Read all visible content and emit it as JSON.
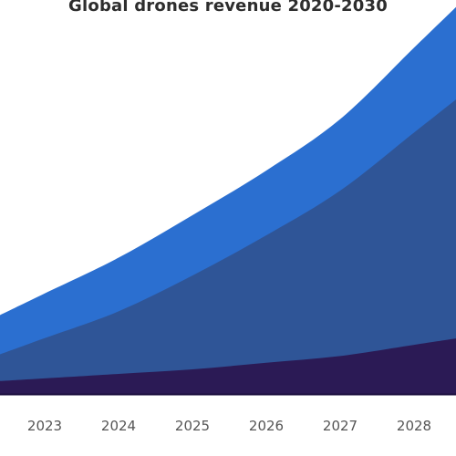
{
  "chart_data": {
    "type": "area",
    "stacked": true,
    "title": "Global drones revenue 2020-2030",
    "categories": [
      "2023",
      "2024",
      "2025",
      "2026",
      "2027",
      "2028"
    ],
    "series": [
      {
        "values": [
          7,
          9,
          11,
          14,
          17,
          22
        ],
        "color": "#2b1a55"
      },
      {
        "values": [
          18,
          28,
          42,
          57,
          74,
          95
        ],
        "color": "#2f5597"
      },
      {
        "values": [
          20,
          24,
          27,
          29,
          32,
          38
        ],
        "color": "#2b6fd0"
      }
    ],
    "xlabel": "",
    "ylabel": "",
    "ylim": [
      0,
      160
    ],
    "grid": false,
    "legend": "none"
  }
}
